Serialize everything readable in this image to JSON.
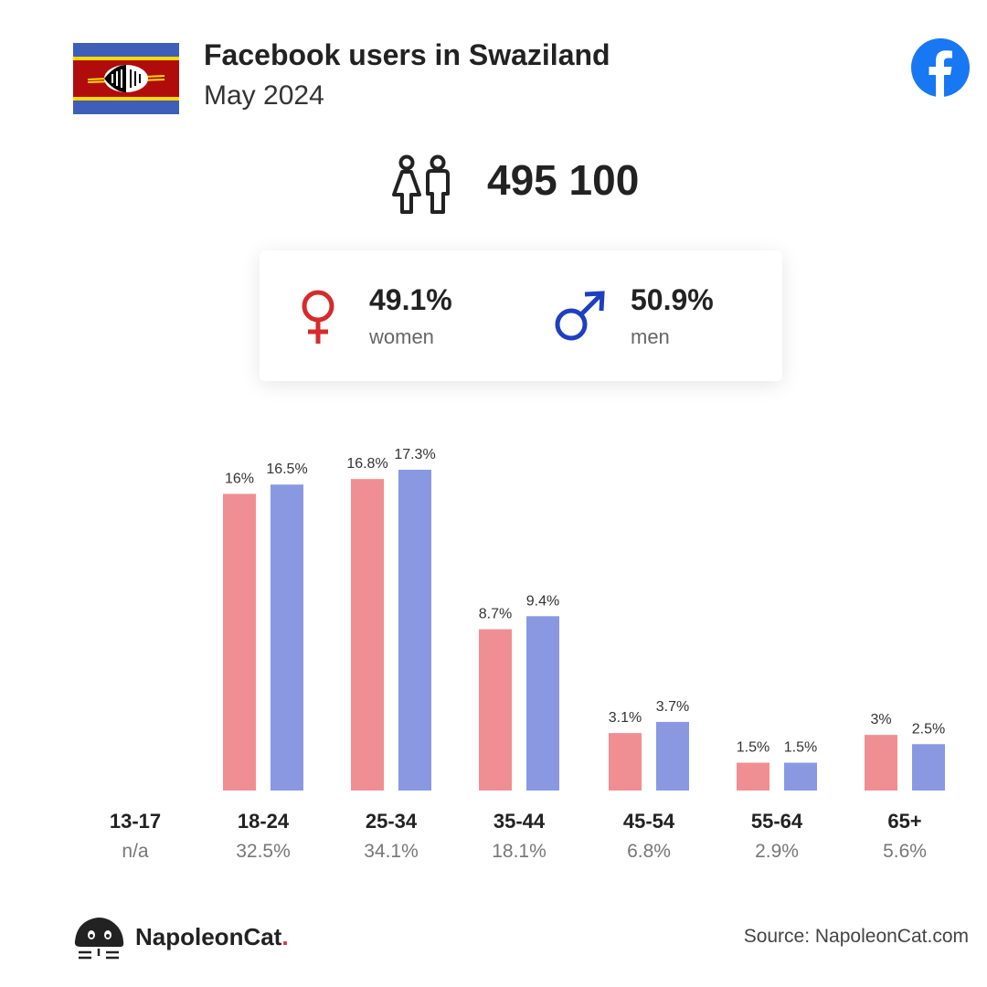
{
  "header": {
    "title": "Facebook users in Swaziland",
    "subtitle": "May 2024"
  },
  "summary": {
    "total_users": "495 100",
    "women": {
      "value": "49.1%",
      "label": "women"
    },
    "men": {
      "value": "50.9%",
      "label": "men"
    }
  },
  "colors": {
    "women": "#ef8f94",
    "men": "#8a98e2",
    "female_symbol": "#d62b2b",
    "male_symbol": "#1e3fc0",
    "facebook": "#1877f2"
  },
  "chart_data": {
    "type": "bar",
    "categories": [
      "13-17",
      "18-24",
      "25-34",
      "35-44",
      "45-54",
      "55-64",
      "65+"
    ],
    "category_totals": [
      "n/a",
      "32.5%",
      "34.1%",
      "18.1%",
      "6.8%",
      "2.9%",
      "5.6%"
    ],
    "series": [
      {
        "name": "women",
        "values": [
          null,
          16,
          16.8,
          8.7,
          3.1,
          1.5,
          3
        ],
        "labels": [
          "",
          "16%",
          "16.8%",
          "8.7%",
          "3.1%",
          "1.5%",
          "3%"
        ]
      },
      {
        "name": "men",
        "values": [
          null,
          16.5,
          17.3,
          9.4,
          3.7,
          1.5,
          2.5
        ],
        "labels": [
          "",
          "16.5%",
          "17.3%",
          "9.4%",
          "3.7%",
          "1.5%",
          "2.5%"
        ]
      }
    ],
    "ylim": [
      0,
      17.3
    ],
    "grid": false,
    "legend": "none"
  },
  "footer": {
    "brand_name": "NapoleonCat",
    "brand_dot": ".",
    "source": "Source: NapoleonCat.com"
  }
}
